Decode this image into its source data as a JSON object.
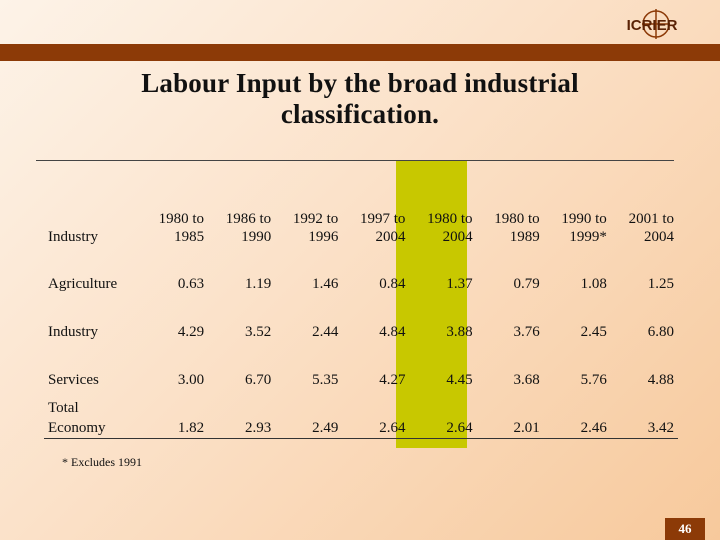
{
  "logo": {
    "text": "ICRIER"
  },
  "title": "Labour Input by the broad industrial\nclassification.",
  "table": {
    "headers": [
      "Industry",
      "1980 to\n1985",
      "1986 to\n1990",
      "1992 to\n1996",
      "1997 to\n2004",
      "1980 to\n2004",
      "1980 to\n1989",
      "1990 to\n1999*",
      "2001 to\n2004"
    ],
    "rows": [
      {
        "label": "Agriculture",
        "values": [
          "0.63",
          "1.19",
          "1.46",
          "0.84",
          "1.37",
          "0.79",
          "1.08",
          "1.25"
        ]
      },
      {
        "label": "Industry",
        "values": [
          "4.29",
          "3.52",
          "2.44",
          "4.84",
          "3.88",
          "3.76",
          "2.45",
          "6.80"
        ]
      },
      {
        "label": "Services",
        "values": [
          "3.00",
          "6.70",
          "5.35",
          "4.27",
          "4.45",
          "3.68",
          "5.76",
          "4.88"
        ]
      },
      {
        "label": "Total\nEconomy",
        "values": [
          "1.82",
          "2.93",
          "2.49",
          "2.64",
          "2.64",
          "2.01",
          "2.46",
          "3.42"
        ]
      }
    ]
  },
  "footnote": "* Excludes 1991",
  "page_number": "46",
  "colors": {
    "accent": "#8c3a07",
    "highlight": "#c8c800"
  }
}
